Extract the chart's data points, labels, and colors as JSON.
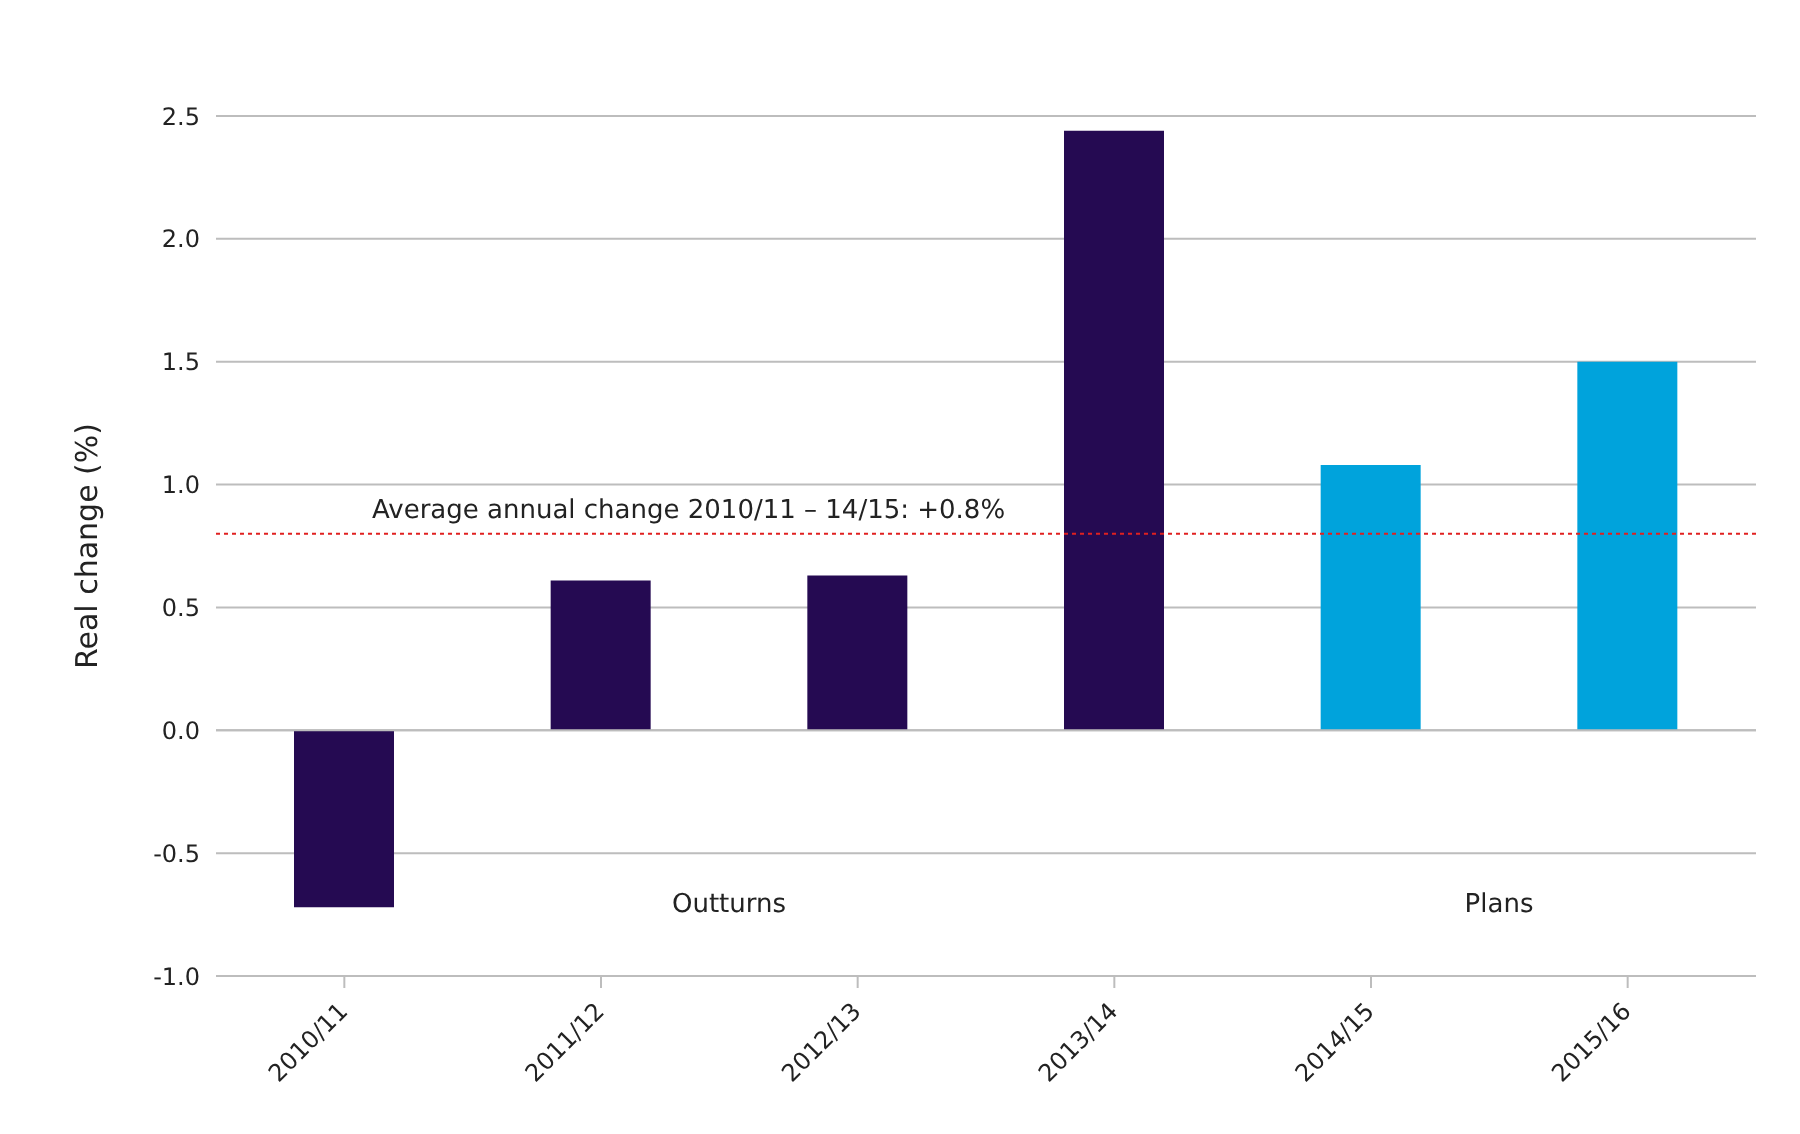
{
  "chart_data": {
    "type": "bar",
    "ylabel": "Real change (%)",
    "categories": [
      "2010/11",
      "2011/12",
      "2012/13",
      "2013/14",
      "2014/15",
      "2015/16"
    ],
    "values": [
      -0.72,
      0.61,
      0.63,
      2.44,
      1.08,
      1.5
    ],
    "colors": [
      "#250a52",
      "#250a52",
      "#250a52",
      "#250a52",
      "#00a3dc",
      "#00a3dc"
    ],
    "ylim": [
      -1,
      2.5
    ],
    "yticks": [
      {
        "value": -1,
        "label": "-1.0"
      },
      {
        "value": -0.5,
        "label": "-0.5"
      },
      {
        "value": 0,
        "label": "0.0"
      },
      {
        "value": 0.5,
        "label": "0.5"
      },
      {
        "value": 1,
        "label": "1.0"
      },
      {
        "value": 1.5,
        "label": "1.5"
      },
      {
        "value": 2,
        "label": "2.0"
      },
      {
        "value": 2.5,
        "label": "2.5"
      }
    ],
    "grid": "y",
    "ref_lines": [
      {
        "axis": "y",
        "value": 0.8,
        "label": "Average annual change 2010/11 – 14/15: +0.8%",
        "color": "#e02020",
        "line_style": "dotted"
      }
    ],
    "annotations": [
      "Outturns",
      "Plans"
    ]
  }
}
